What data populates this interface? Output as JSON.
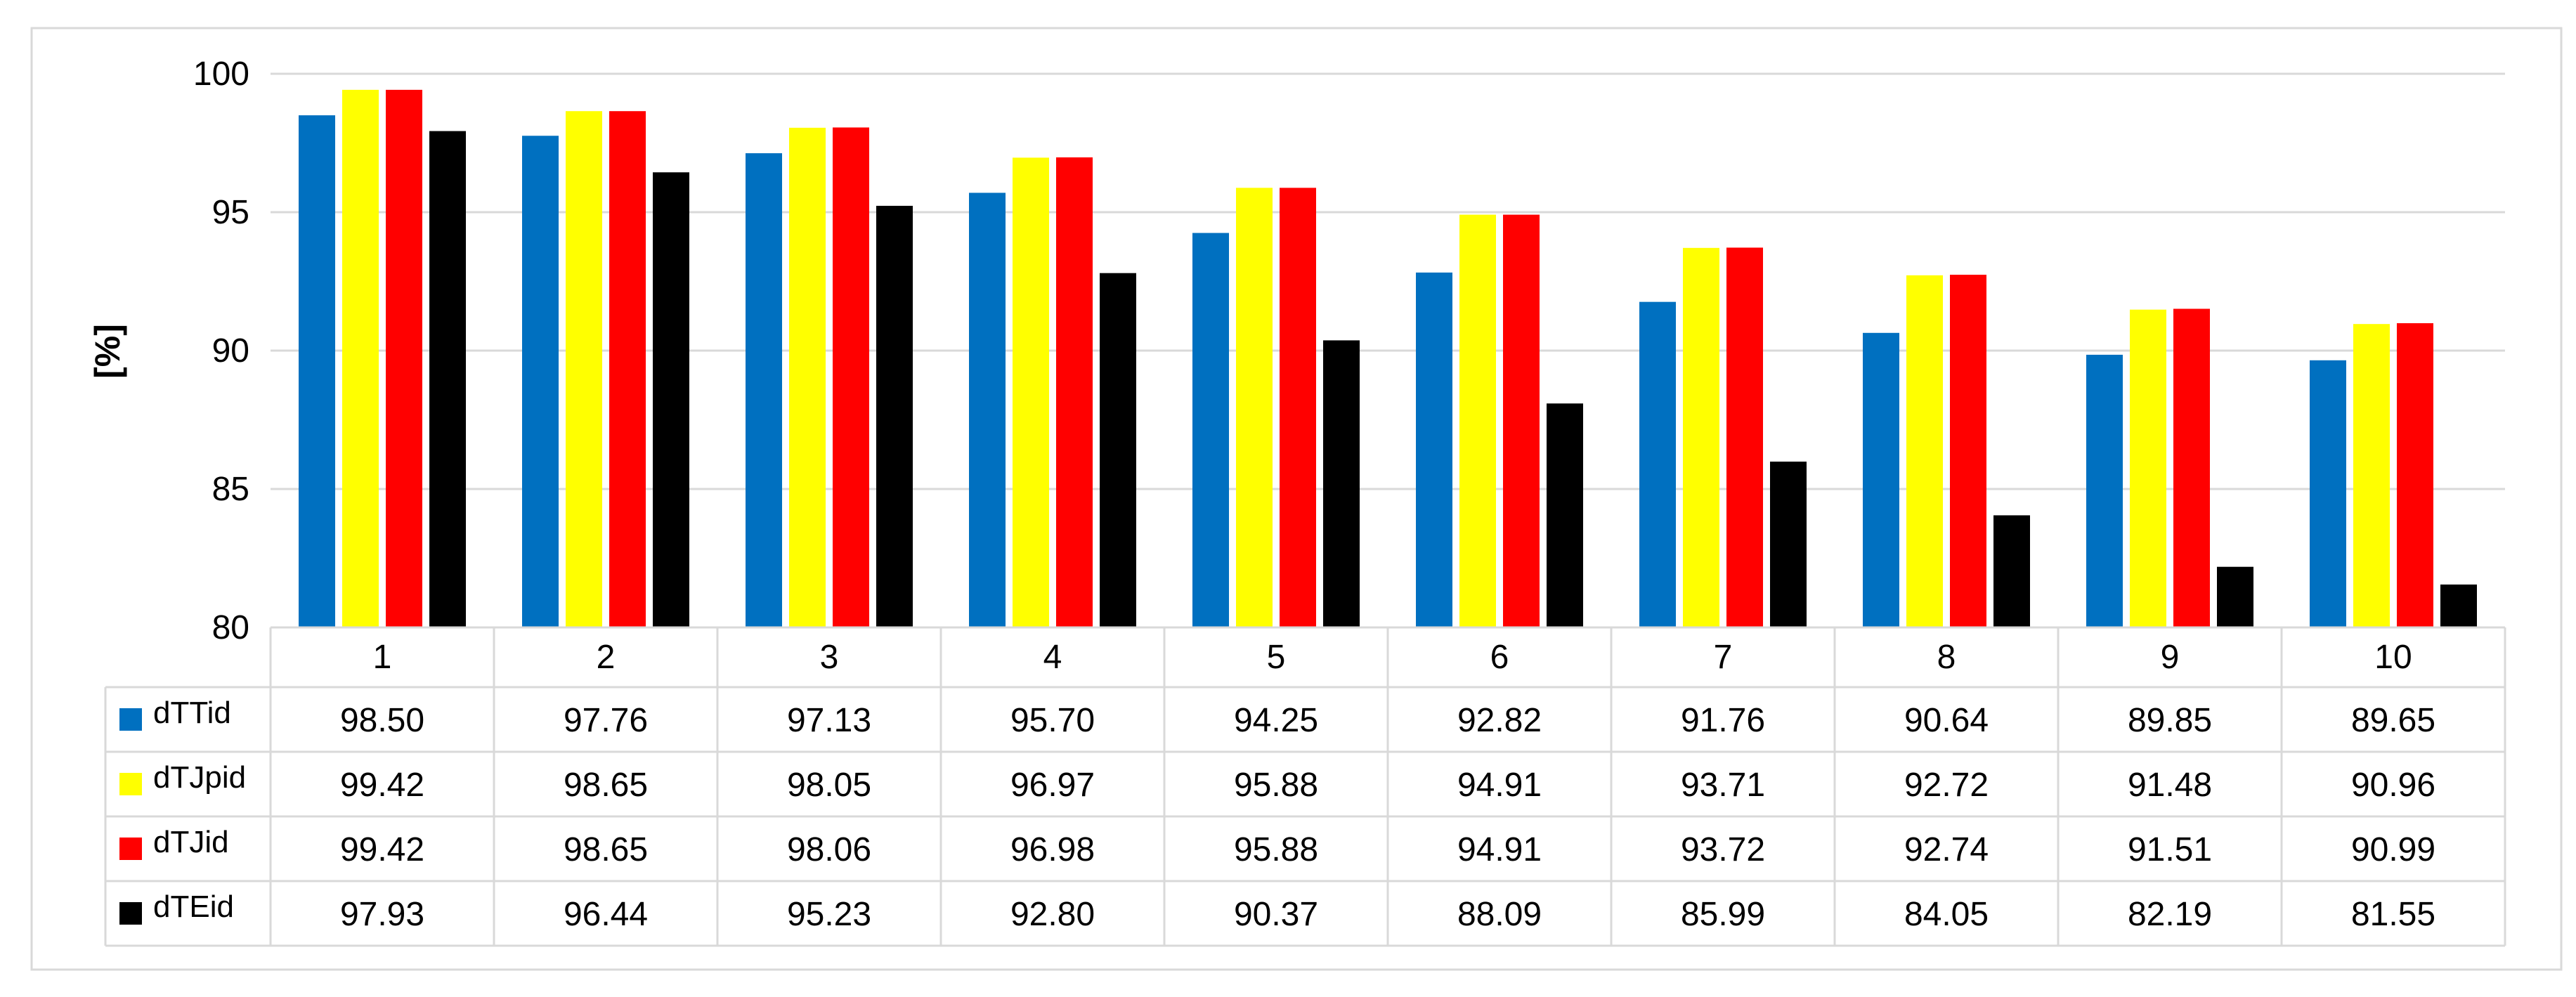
{
  "chart_data": {
    "type": "bar",
    "title": "",
    "xlabel": "",
    "ylabel": "[%]",
    "ylim": [
      80,
      100
    ],
    "yticks": [
      80,
      85,
      90,
      95,
      100
    ],
    "grid": true,
    "legend": "data-table-left",
    "categories": [
      "1",
      "2",
      "3",
      "4",
      "5",
      "6",
      "7",
      "8",
      "9",
      "10"
    ],
    "series": [
      {
        "name": "dTTid",
        "color": "#0070C0",
        "values": [
          98.5,
          97.76,
          97.13,
          95.7,
          94.25,
          92.82,
          91.76,
          90.64,
          89.85,
          89.65
        ],
        "labels": [
          "98.50",
          "97.76",
          "97.13",
          "95.70",
          "94.25",
          "92.82",
          "91.76",
          "90.64",
          "89.85",
          "89.65"
        ]
      },
      {
        "name": "dTJpid",
        "color": "#FFFF00",
        "values": [
          99.42,
          98.65,
          98.05,
          96.97,
          95.88,
          94.91,
          93.71,
          92.72,
          91.48,
          90.96
        ],
        "labels": [
          "99.42",
          "98.65",
          "98.05",
          "96.97",
          "95.88",
          "94.91",
          "93.71",
          "92.72",
          "91.48",
          "90.96"
        ]
      },
      {
        "name": "dTJid",
        "color": "#FF0000",
        "values": [
          99.42,
          98.65,
          98.06,
          96.98,
          95.88,
          94.91,
          93.72,
          92.74,
          91.51,
          90.99
        ],
        "labels": [
          "99.42",
          "98.65",
          "98.06",
          "96.98",
          "95.88",
          "94.91",
          "93.72",
          "92.74",
          "91.51",
          "90.99"
        ]
      },
      {
        "name": "dTEid",
        "color": "#000000",
        "values": [
          97.93,
          96.44,
          95.23,
          92.8,
          90.37,
          88.09,
          85.99,
          84.05,
          82.19,
          81.55
        ],
        "labels": [
          "97.93",
          "96.44",
          "95.23",
          "92.80",
          "90.37",
          "88.09",
          "85.99",
          "84.05",
          "82.19",
          "81.55"
        ]
      }
    ]
  }
}
